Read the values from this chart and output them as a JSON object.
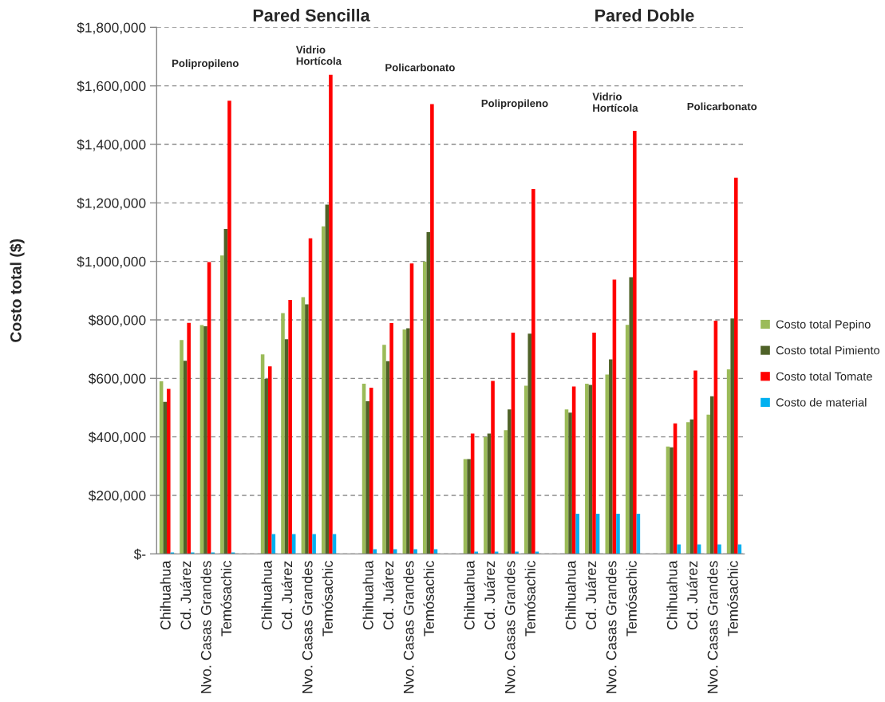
{
  "chart_data": {
    "type": "bar",
    "ylabel": "Costo total ($)",
    "annotations": [
      "Pared Sencilla",
      "Polipropileno",
      "Vidrio\nHortícola",
      "Policarbonato",
      "Pared Doble",
      "Polipropileno",
      "Vidrio\nHortícola",
      "Policarbonato"
    ],
    "categories": [
      "Chihuahua",
      "Cd. Juárez",
      "Nvo. Casas Grandes",
      "Temósachic",
      null,
      "Chihuahua",
      "Cd. Juárez",
      "Nvo. Casas Grandes",
      "Temósachic",
      null,
      "Chihuahua",
      "Cd. Juárez",
      "Nvo. Casas Grandes",
      "Temósachic",
      null,
      "Chihuahua",
      "Cd. Juárez",
      "Nvo. Casas Grandes",
      "Temósachic",
      null,
      "Chihuahua",
      "Cd. Juárez",
      "Nvo. Casas Grandes",
      "Temósachic",
      null,
      "Chihuahua",
      "Cd. Juárez",
      "Nvo. Casas Grandes",
      "Temósachic"
    ],
    "series": [
      {
        "name": "Costo total Pepino",
        "color": "#9bbb59",
        "values": [
          590000,
          731000,
          782000,
          1020000,
          null,
          682000,
          823000,
          878000,
          1120000,
          null,
          582000,
          715000,
          767000,
          999000,
          null,
          324000,
          400000,
          423000,
          575000,
          null,
          494000,
          582000,
          613000,
          783000,
          null,
          367000,
          450000,
          476000,
          631000
        ]
      },
      {
        "name": "Costo total Pimiento",
        "color": "#4f6228",
        "values": [
          520000,
          660000,
          778000,
          1111000,
          null,
          598000,
          734000,
          853000,
          1194000,
          null,
          522000,
          659000,
          771000,
          1100000,
          null,
          324000,
          411000,
          494000,
          753000,
          null,
          483000,
          578000,
          665000,
          946000,
          null,
          364000,
          460000,
          539000,
          805000
        ]
      },
      {
        "name": "Costo total Tomate",
        "color": "#ff0000",
        "values": [
          564000,
          790000,
          998000,
          1549000,
          null,
          641000,
          868000,
          1079000,
          1638000,
          null,
          568000,
          789000,
          993000,
          1538000,
          null,
          411000,
          591000,
          756000,
          1247000,
          null,
          572000,
          756000,
          938000,
          1446000,
          null,
          446000,
          627000,
          797000,
          1286000
        ]
      },
      {
        "name": "Costo de material",
        "color": "#00b0f0",
        "values": [
          5000,
          5000,
          5000,
          5000,
          null,
          68000,
          68000,
          68000,
          68000,
          null,
          16000,
          16000,
          16000,
          16000,
          null,
          8000,
          8000,
          8000,
          8000,
          null,
          137000,
          137000,
          137000,
          137000,
          null,
          32000,
          32000,
          32000,
          32000
        ]
      }
    ],
    "ylim": [
      0,
      1800000
    ],
    "yticks": [
      {
        "value": 0,
        "label": "$-"
      },
      {
        "value": 200000,
        "label": "$200,000"
      },
      {
        "value": 400000,
        "label": "$400,000"
      },
      {
        "value": 600000,
        "label": "$600,000"
      },
      {
        "value": 800000,
        "label": "$800,000"
      },
      {
        "value": 1000000,
        "label": "$1,000,000"
      },
      {
        "value": 1200000,
        "label": "$1,200,000"
      },
      {
        "value": 1400000,
        "label": "$1,400,000"
      },
      {
        "value": 1600000,
        "label": "$1,600,000"
      },
      {
        "value": 1800000,
        "label": "$1,800,000"
      }
    ],
    "grid": "y",
    "legend": "right"
  }
}
